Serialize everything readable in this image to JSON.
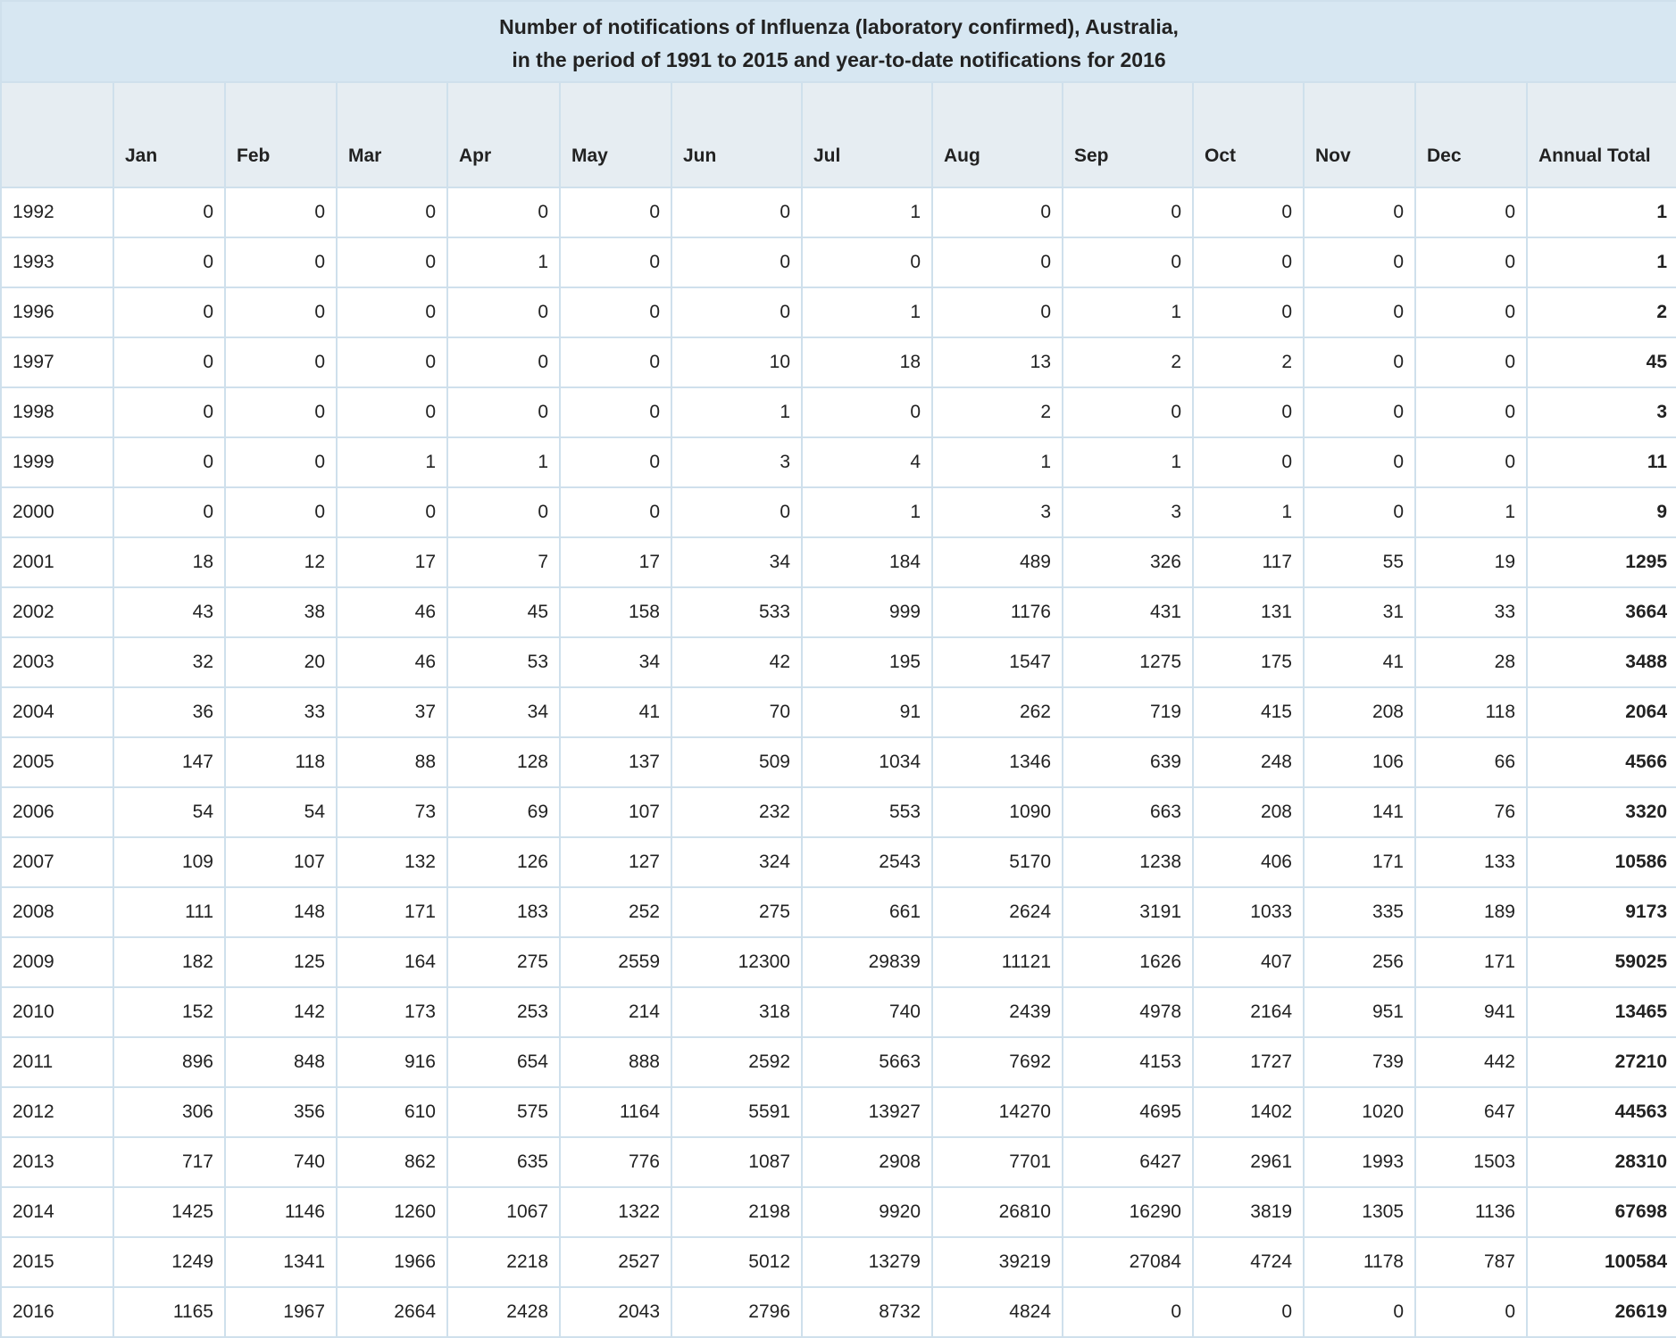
{
  "title_line1": "Number of notifications of Influenza (laboratory confirmed), Australia,",
  "title_line2": "in the period of 1991 to 2015 and year-to-date notifications for 2016",
  "columns": [
    "",
    "Jan",
    "Feb",
    "Mar",
    "Apr",
    "May",
    "Jun",
    "Jul",
    "Aug",
    "Sep",
    "Oct",
    "Nov",
    "Dec",
    "Annual Total"
  ],
  "rows": [
    [
      "1992",
      "0",
      "0",
      "0",
      "0",
      "0",
      "0",
      "1",
      "0",
      "0",
      "0",
      "0",
      "0",
      "1"
    ],
    [
      "1993",
      "0",
      "0",
      "0",
      "1",
      "0",
      "0",
      "0",
      "0",
      "0",
      "0",
      "0",
      "0",
      "1"
    ],
    [
      "1996",
      "0",
      "0",
      "0",
      "0",
      "0",
      "0",
      "1",
      "0",
      "1",
      "0",
      "0",
      "0",
      "2"
    ],
    [
      "1997",
      "0",
      "0",
      "0",
      "0",
      "0",
      "10",
      "18",
      "13",
      "2",
      "2",
      "0",
      "0",
      "45"
    ],
    [
      "1998",
      "0",
      "0",
      "0",
      "0",
      "0",
      "1",
      "0",
      "2",
      "0",
      "0",
      "0",
      "0",
      "3"
    ],
    [
      "1999",
      "0",
      "0",
      "1",
      "1",
      "0",
      "3",
      "4",
      "1",
      "1",
      "0",
      "0",
      "0",
      "11"
    ],
    [
      "2000",
      "0",
      "0",
      "0",
      "0",
      "0",
      "0",
      "1",
      "3",
      "3",
      "1",
      "0",
      "1",
      "9"
    ],
    [
      "2001",
      "18",
      "12",
      "17",
      "7",
      "17",
      "34",
      "184",
      "489",
      "326",
      "117",
      "55",
      "19",
      "1295"
    ],
    [
      "2002",
      "43",
      "38",
      "46",
      "45",
      "158",
      "533",
      "999",
      "1176",
      "431",
      "131",
      "31",
      "33",
      "3664"
    ],
    [
      "2003",
      "32",
      "20",
      "46",
      "53",
      "34",
      "42",
      "195",
      "1547",
      "1275",
      "175",
      "41",
      "28",
      "3488"
    ],
    [
      "2004",
      "36",
      "33",
      "37",
      "34",
      "41",
      "70",
      "91",
      "262",
      "719",
      "415",
      "208",
      "118",
      "2064"
    ],
    [
      "2005",
      "147",
      "118",
      "88",
      "128",
      "137",
      "509",
      "1034",
      "1346",
      "639",
      "248",
      "106",
      "66",
      "4566"
    ],
    [
      "2006",
      "54",
      "54",
      "73",
      "69",
      "107",
      "232",
      "553",
      "1090",
      "663",
      "208",
      "141",
      "76",
      "3320"
    ],
    [
      "2007",
      "109",
      "107",
      "132",
      "126",
      "127",
      "324",
      "2543",
      "5170",
      "1238",
      "406",
      "171",
      "133",
      "10586"
    ],
    [
      "2008",
      "111",
      "148",
      "171",
      "183",
      "252",
      "275",
      "661",
      "2624",
      "3191",
      "1033",
      "335",
      "189",
      "9173"
    ],
    [
      "2009",
      "182",
      "125",
      "164",
      "275",
      "2559",
      "12300",
      "29839",
      "11121",
      "1626",
      "407",
      "256",
      "171",
      "59025"
    ],
    [
      "2010",
      "152",
      "142",
      "173",
      "253",
      "214",
      "318",
      "740",
      "2439",
      "4978",
      "2164",
      "951",
      "941",
      "13465"
    ],
    [
      "2011",
      "896",
      "848",
      "916",
      "654",
      "888",
      "2592",
      "5663",
      "7692",
      "4153",
      "1727",
      "739",
      "442",
      "27210"
    ],
    [
      "2012",
      "306",
      "356",
      "610",
      "575",
      "1164",
      "5591",
      "13927",
      "14270",
      "4695",
      "1402",
      "1020",
      "647",
      "44563"
    ],
    [
      "2013",
      "717",
      "740",
      "862",
      "635",
      "776",
      "1087",
      "2908",
      "7701",
      "6427",
      "2961",
      "1993",
      "1503",
      "28310"
    ],
    [
      "2014",
      "1425",
      "1146",
      "1260",
      "1067",
      "1322",
      "2198",
      "9920",
      "26810",
      "16290",
      "3819",
      "1305",
      "1136",
      "67698"
    ],
    [
      "2015",
      "1249",
      "1341",
      "1966",
      "2218",
      "2527",
      "5012",
      "13279",
      "39219",
      "27084",
      "4724",
      "1178",
      "787",
      "100584"
    ],
    [
      "2016",
      "1165",
      "1967",
      "2664",
      "2428",
      "2043",
      "2796",
      "8732",
      "4824",
      "0",
      "0",
      "0",
      "0",
      "26619"
    ]
  ]
}
